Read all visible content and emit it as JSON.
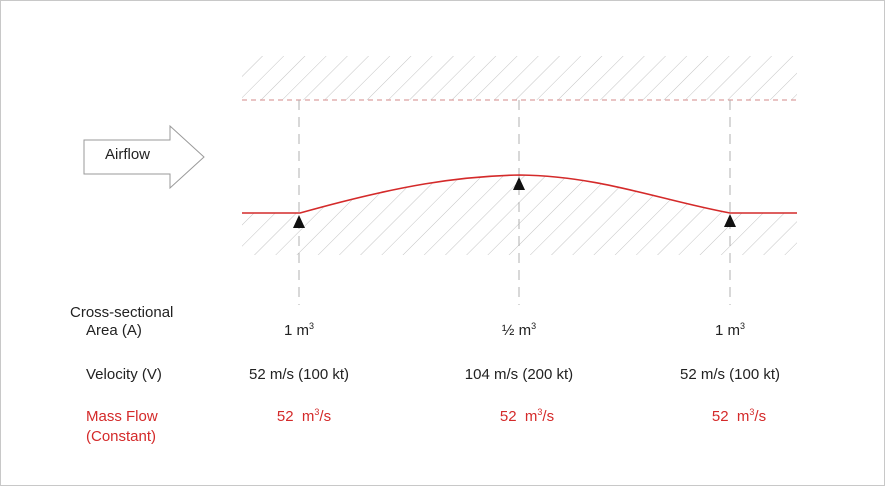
{
  "diagram": {
    "airflow_label": "Airflow",
    "row_labels": {
      "area_line1": "Cross-sectional",
      "area_line2": "Area (A)",
      "velocity": "Velocity (V)",
      "mass_flow_line1": "Mass Flow",
      "mass_flow_line2": "(Constant)"
    },
    "stations": [
      {
        "area_value": "1 m",
        "area_exp": "3",
        "velocity": "52 m/s (100 kt)",
        "mass_flow_value": "52  m",
        "mass_flow_exp": "3",
        "mass_flow_unit": "/s"
      },
      {
        "area_value": "½ m",
        "area_exp": "3",
        "velocity": "104 m/s (200 kt)",
        "mass_flow_value": "52  m",
        "mass_flow_exp": "3",
        "mass_flow_unit": "/s"
      },
      {
        "area_value": "1 m",
        "area_exp": "3",
        "velocity": "52 m/s (100 kt)",
        "mass_flow_value": "52  m",
        "mass_flow_exp": "3",
        "mass_flow_unit": "/s"
      }
    ],
    "colors": {
      "profile": "#d42a2a",
      "mass_flow_text": "#d42a2a",
      "hatch": "#c8c8c8",
      "text": "#222222"
    }
  }
}
